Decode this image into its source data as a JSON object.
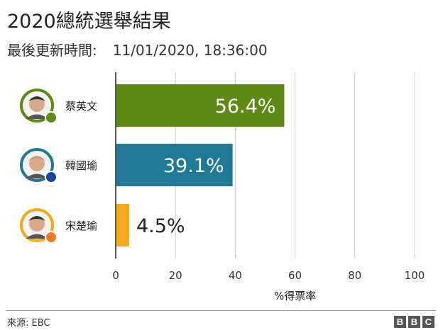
{
  "header": {
    "title": "2020總統選舉結果",
    "subtitle_label": "最後更新時間:",
    "subtitle_value": "11/01/2020, 18:36:00"
  },
  "chart_data": {
    "type": "bar",
    "orientation": "horizontal",
    "title": "2020總統選舉結果",
    "xlabel": "%得票率",
    "ylabel": "",
    "xlim": [
      0,
      100
    ],
    "x_ticks": [
      0,
      20,
      40,
      60,
      80,
      100
    ],
    "grid": true,
    "categories": [
      "蔡英文",
      "韓國瑜",
      "宋楚瑜"
    ],
    "values": [
      56.4,
      39.1,
      4.5
    ],
    "value_labels": [
      "56.4%",
      "39.1%",
      "4.5%"
    ],
    "colors": [
      "#5c8a14",
      "#1f7a96",
      "#f5a91c"
    ],
    "avatar_ring_colors": [
      "#5c8a14",
      "#1f7a96",
      "#f5a91c"
    ],
    "avatar_icons": [
      "tsai-avatar-icon",
      "han-avatar-icon",
      "soong-avatar-icon"
    ],
    "party_badge_colors": [
      "#5c8a14",
      "#1746a2",
      "#f57a1c"
    ],
    "party_badge_icons": [
      "dpp-badge-icon",
      "kmt-badge-icon",
      "pfp-badge-icon"
    ]
  },
  "footer": {
    "source": "來源: EBC",
    "logo": [
      "B",
      "B",
      "C"
    ]
  }
}
